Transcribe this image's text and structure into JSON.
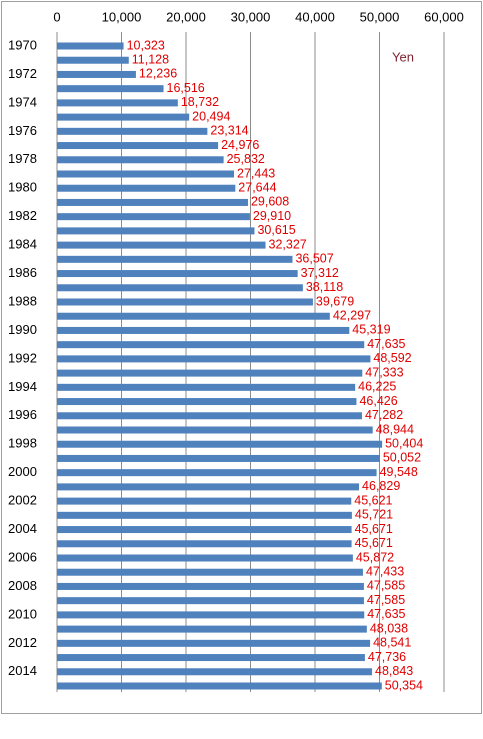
{
  "chart_data": {
    "type": "bar",
    "orientation": "horizontal",
    "annotation": "Yen",
    "categories": [
      "1970",
      null,
      "1972",
      null,
      "1974",
      null,
      "1976",
      null,
      "1978",
      null,
      "1980",
      null,
      "1982",
      null,
      "1984",
      null,
      "1986",
      null,
      "1988",
      null,
      "1990",
      null,
      "1992",
      null,
      "1994",
      null,
      "1996",
      null,
      "1998",
      null,
      "2000",
      null,
      "2002",
      null,
      "2004",
      null,
      "2006",
      null,
      "2008",
      null,
      "2010",
      null,
      "2012",
      null,
      "2014",
      null
    ],
    "values": [
      10323,
      11128,
      12236,
      16516,
      18732,
      20494,
      23314,
      24976,
      25832,
      27443,
      27644,
      29608,
      29910,
      30615,
      32327,
      36507,
      37312,
      38118,
      39679,
      42297,
      45319,
      47635,
      48592,
      47333,
      46225,
      46426,
      47282,
      48944,
      50404,
      50052,
      49548,
      46829,
      45621,
      45721,
      45671,
      45671,
      45872,
      47433,
      47585,
      47585,
      47635,
      48038,
      48541,
      47736,
      48843,
      50354
    ],
    "value_labels": [
      "10,323",
      "11,128",
      "12,236",
      "16,516",
      "18,732",
      "20,494",
      "23,314",
      "24,976",
      "25,832",
      "27,443",
      "27,644",
      "29,608",
      "29,910",
      "30,615",
      "32,327",
      "36,507",
      "37,312",
      "38,118",
      "39,679",
      "42,297",
      "45,319",
      "47,635",
      "48,592",
      "47,333",
      "46,225",
      "46,426",
      "47,282",
      "48,944",
      "50,404",
      "50,052",
      "49,548",
      "46,829",
      "45,621",
      "45,721",
      "45,671",
      "45,671",
      "45,872",
      "47,433",
      "47,585",
      "47,585",
      "47,635",
      "48,038",
      "48,541",
      "47,736",
      "48,843",
      "50,354"
    ],
    "color": "#4f81bd",
    "value_label_color": "#e00000",
    "xlim": [
      0,
      60000
    ],
    "xticks": [
      0,
      {
        "value": 10000,
        "label": "10,000"
      },
      {
        "value": 20000,
        "label": "20,000"
      },
      {
        "value": 30000,
        "label": "30,000"
      },
      {
        "value": 40000,
        "label": "40,000"
      },
      {
        "value": 50000,
        "label": "50,000"
      },
      {
        "value": 60000,
        "label": "60,000"
      }
    ],
    "grid": true
  }
}
